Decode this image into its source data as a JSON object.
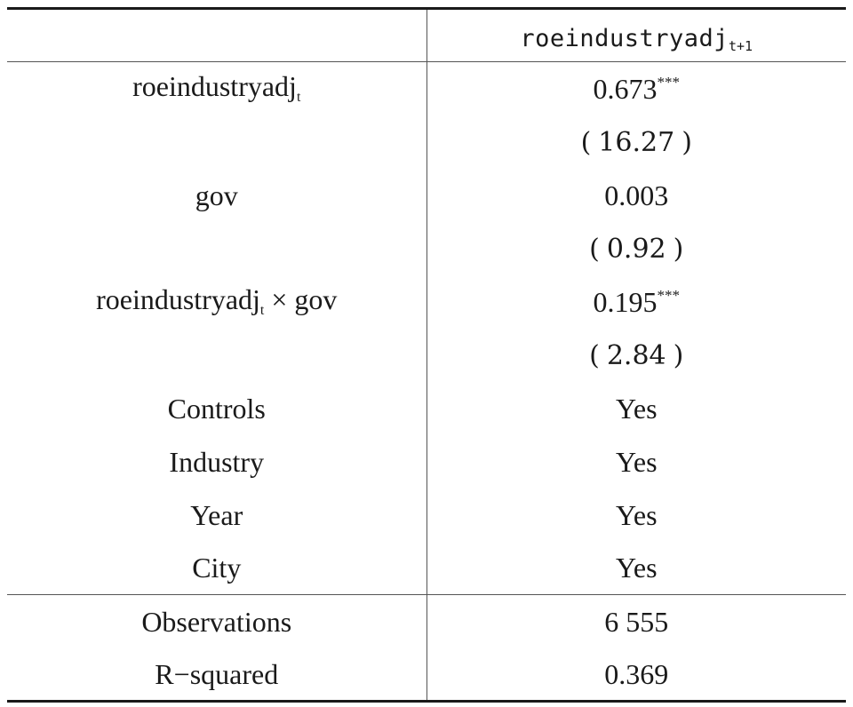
{
  "table": {
    "header": {
      "dependent_var": "roeindustryadj",
      "dependent_sub": "t+1"
    },
    "rows": [
      {
        "label": "roeindustryadj",
        "label_sub": "t",
        "label_tail": "",
        "coef": "0.673",
        "stars": "***",
        "tstat": "16.27"
      },
      {
        "label": "gov",
        "label_sub": "",
        "label_tail": "",
        "coef": "0.003",
        "stars": "",
        "tstat": "0.92"
      },
      {
        "label": "roeindustryadj",
        "label_sub": "t",
        "label_tail": " × gov",
        "coef": "0.195",
        "stars": "***",
        "tstat": "2.84"
      }
    ],
    "controls": [
      {
        "label": "Controls",
        "value": "Yes"
      },
      {
        "label": "Industry",
        "value": "Yes"
      },
      {
        "label": "Year",
        "value": "Yes"
      },
      {
        "label": "City",
        "value": "Yes"
      }
    ],
    "stats": [
      {
        "label": "Observations",
        "value": "6 555"
      },
      {
        "label": "R−squared",
        "value": "0.369"
      }
    ],
    "paren_open": "(",
    "paren_close": ")"
  }
}
